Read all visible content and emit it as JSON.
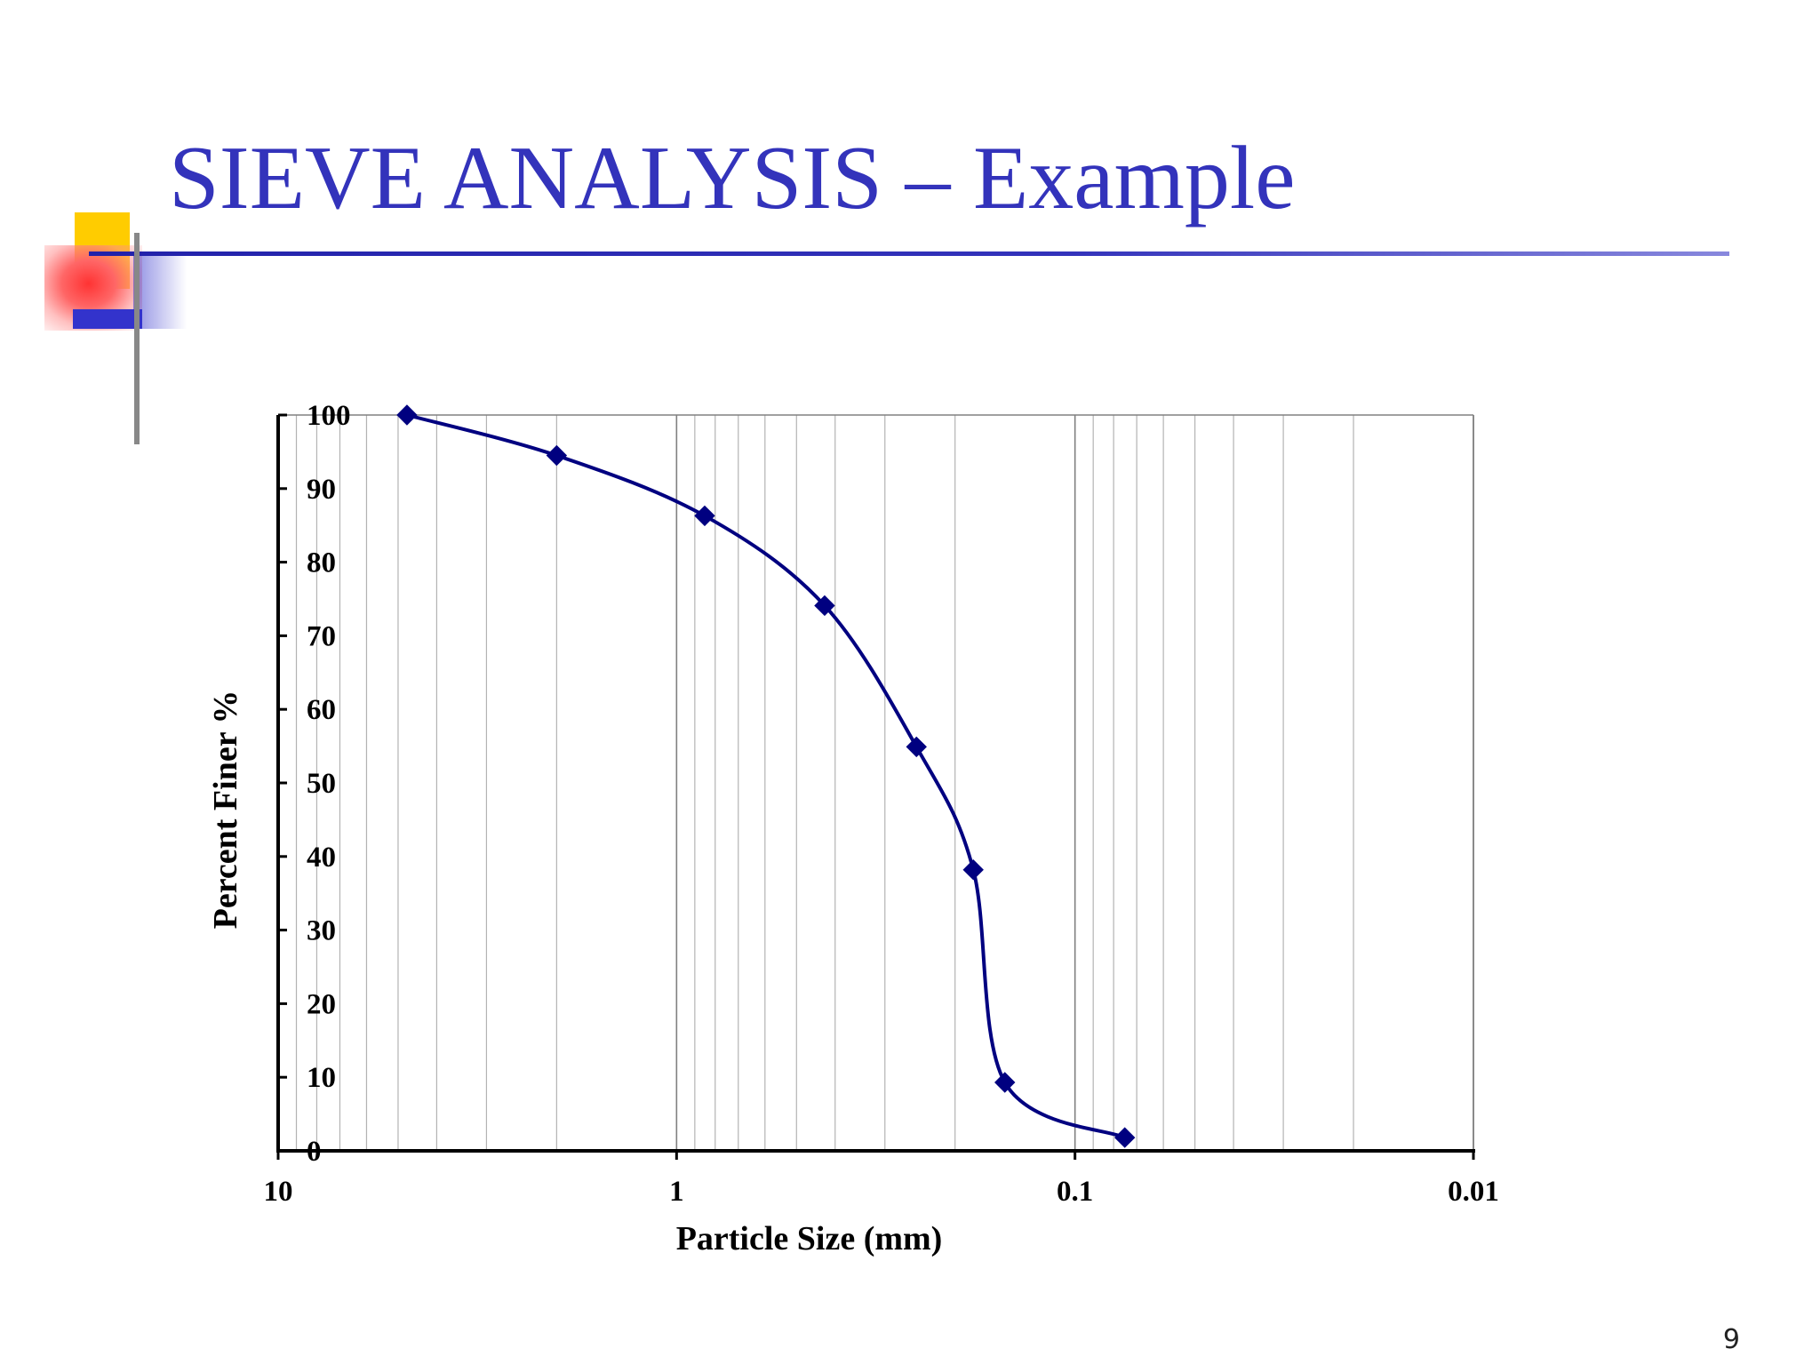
{
  "slide": {
    "title": "SIEVE ANALYSIS – Example",
    "page_number": "9",
    "colors": {
      "title": "#3333bb",
      "series": "#000080",
      "deco_yellow": "#ffcc00",
      "deco_red": "#ff3333",
      "deco_blue": "#3333cc"
    }
  },
  "chart_data": {
    "type": "line",
    "title": "",
    "xlabel": "Particle Size (mm)",
    "ylabel": "Percent Finer %",
    "x_scale": "log",
    "x_reversed": true,
    "xlim": [
      10,
      0.01
    ],
    "ylim": [
      0,
      100
    ],
    "x_ticks": [
      {
        "value": 10,
        "label": "10"
      },
      {
        "value": 1,
        "label": "1"
      },
      {
        "value": 0.1,
        "label": "0.1"
      },
      {
        "value": 0.01,
        "label": "0.01"
      }
    ],
    "y_ticks": [
      {
        "value": 0,
        "label": "0"
      },
      {
        "value": 10,
        "label": "10"
      },
      {
        "value": 20,
        "label": "20"
      },
      {
        "value": 30,
        "label": "30"
      },
      {
        "value": 40,
        "label": "40"
      },
      {
        "value": 50,
        "label": "50"
      },
      {
        "value": 60,
        "label": "60"
      },
      {
        "value": 70,
        "label": "70"
      },
      {
        "value": 80,
        "label": "80"
      },
      {
        "value": 90,
        "label": "90"
      },
      {
        "value": 100,
        "label": "100"
      }
    ],
    "grid": "vertical minor log gridlines",
    "legend": "none",
    "marker": "diamond",
    "series": [
      {
        "x": [
          4.75,
          2.0,
          0.85,
          0.425,
          0.25,
          0.18,
          0.15,
          0.075
        ],
        "y": [
          100,
          94.5,
          86.3,
          74.1,
          54.9,
          38.2,
          9.3,
          1.8
        ]
      }
    ]
  }
}
